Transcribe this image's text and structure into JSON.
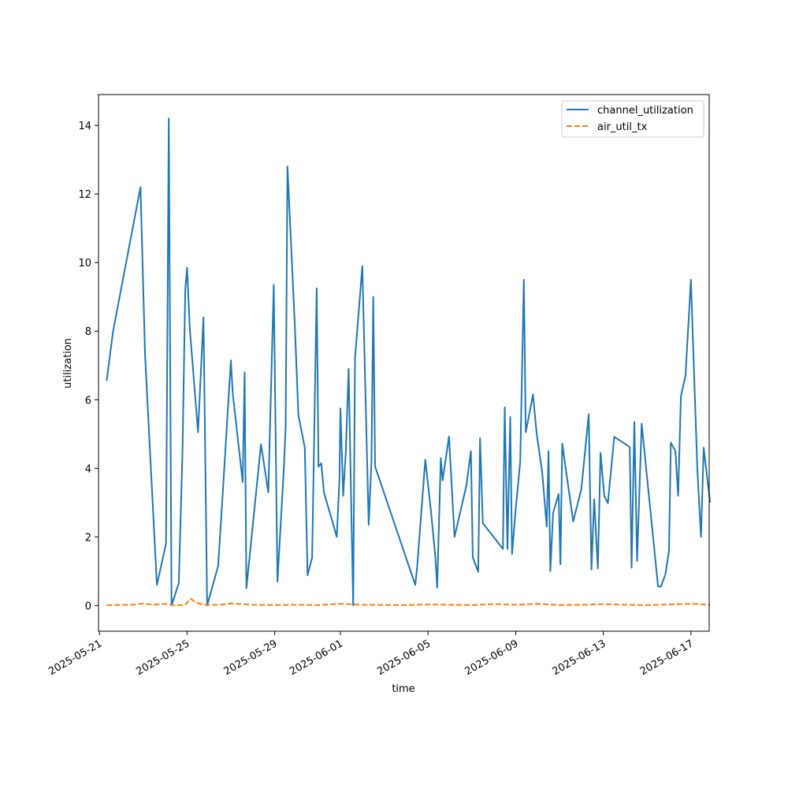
{
  "chart_data": {
    "type": "line",
    "xlabel": "time",
    "ylabel": "utilization",
    "xlim": [
      "2025-05-20T23:00",
      "2025-06-17T20:00"
    ],
    "ylim": [
      -0.75,
      14.9
    ],
    "x_ticks": [
      "2025-05-21",
      "2025-05-25",
      "2025-05-29",
      "2025-06-01",
      "2025-06-05",
      "2025-06-09",
      "2025-06-13",
      "2025-06-17"
    ],
    "y_ticks": [
      0,
      2,
      4,
      6,
      8,
      10,
      12,
      14
    ],
    "legend": {
      "position": "top-right"
    },
    "grid": false,
    "series": [
      {
        "name": "channel_utilization",
        "color": "#1f77b4",
        "dash": "solid",
        "points": [
          [
            "2025-05-21T08:00",
            6.55
          ],
          [
            "2025-05-21T15:00",
            8.0
          ],
          [
            "2025-05-22T21:00",
            12.2
          ],
          [
            "2025-05-23T02:00",
            7.3
          ],
          [
            "2025-05-23T15:00",
            0.6
          ],
          [
            "2025-05-24T01:00",
            1.8
          ],
          [
            "2025-05-24T04:00",
            14.2
          ],
          [
            "2025-05-24T07:00",
            0.0
          ],
          [
            "2025-05-24T15:00",
            0.65
          ],
          [
            "2025-05-24T19:00",
            4.5
          ],
          [
            "2025-05-24T22:00",
            9.2
          ],
          [
            "2025-05-25T00:00",
            9.85
          ],
          [
            "2025-05-25T03:00",
            8.1
          ],
          [
            "2025-05-25T12:00",
            5.05
          ],
          [
            "2025-05-25T18:00",
            8.4
          ],
          [
            "2025-05-25T22:00",
            0.0
          ],
          [
            "2025-05-26T10:00",
            1.15
          ],
          [
            "2025-05-26T14:00",
            2.8
          ],
          [
            "2025-05-27T00:00",
            7.15
          ],
          [
            "2025-05-27T02:00",
            6.2
          ],
          [
            "2025-05-27T13:00",
            3.6
          ],
          [
            "2025-05-27T15:00",
            6.8
          ],
          [
            "2025-05-27T17:00",
            0.5
          ],
          [
            "2025-05-28T09:00",
            4.7
          ],
          [
            "2025-05-28T17:00",
            3.3
          ],
          [
            "2025-05-28T23:00",
            9.35
          ],
          [
            "2025-05-29T03:00",
            0.7
          ],
          [
            "2025-05-29T10:00",
            4.0
          ],
          [
            "2025-05-29T12:00",
            5.2
          ],
          [
            "2025-05-29T14:00",
            12.8
          ],
          [
            "2025-05-29T22:00",
            8.2
          ],
          [
            "2025-05-30T02:00",
            5.55
          ],
          [
            "2025-05-30T09:00",
            4.6
          ],
          [
            "2025-05-30T12:00",
            0.88
          ],
          [
            "2025-05-30T17:00",
            1.4
          ],
          [
            "2025-05-30T22:00",
            9.25
          ],
          [
            "2025-05-31T00:00",
            4.05
          ],
          [
            "2025-05-31T03:00",
            4.15
          ],
          [
            "2025-05-31T06:00",
            3.3
          ],
          [
            "2025-05-31T20:00",
            2.0
          ],
          [
            "2025-05-31T23:00",
            3.7
          ],
          [
            "2025-06-01T00:00",
            5.75
          ],
          [
            "2025-06-01T03:00",
            3.2
          ],
          [
            "2025-06-01T06:00",
            4.5
          ],
          [
            "2025-06-01T09:00",
            6.9
          ],
          [
            "2025-06-01T14:00",
            0.0
          ],
          [
            "2025-06-01T16:00",
            7.2
          ],
          [
            "2025-06-02T00:00",
            9.9
          ],
          [
            "2025-06-02T07:00",
            2.35
          ],
          [
            "2025-06-02T10:00",
            4.2
          ],
          [
            "2025-06-02T12:00",
            9.0
          ],
          [
            "2025-06-02T14:00",
            4.05
          ],
          [
            "2025-06-04T10:00",
            0.6
          ],
          [
            "2025-06-04T12:00",
            1.1
          ],
          [
            "2025-06-04T21:00",
            4.25
          ],
          [
            "2025-06-05T03:00",
            2.8
          ],
          [
            "2025-06-05T08:00",
            1.4
          ],
          [
            "2025-06-05T10:00",
            0.52
          ],
          [
            "2025-06-05T14:00",
            4.3
          ],
          [
            "2025-06-05T16:00",
            3.65
          ],
          [
            "2025-06-05T23:00",
            4.93
          ],
          [
            "2025-06-06T05:00",
            2.0
          ],
          [
            "2025-06-06T18:00",
            3.5
          ],
          [
            "2025-06-06T23:00",
            4.5
          ],
          [
            "2025-06-07T01:00",
            1.4
          ],
          [
            "2025-06-07T07:00",
            0.98
          ],
          [
            "2025-06-07T09:00",
            4.88
          ],
          [
            "2025-06-07T12:00",
            2.4
          ],
          [
            "2025-06-08T10:00",
            1.65
          ],
          [
            "2025-06-08T12:00",
            5.78
          ],
          [
            "2025-06-08T15:00",
            1.65
          ],
          [
            "2025-06-08T18:00",
            5.5
          ],
          [
            "2025-06-08T20:00",
            1.5
          ],
          [
            "2025-06-09T00:00",
            2.8
          ],
          [
            "2025-06-09T05:00",
            4.2
          ],
          [
            "2025-06-09T09:00",
            9.5
          ],
          [
            "2025-06-09T11:00",
            5.05
          ],
          [
            "2025-06-09T19:00",
            6.15
          ],
          [
            "2025-06-09T23:00",
            5.0
          ],
          [
            "2025-06-10T05:00",
            3.9
          ],
          [
            "2025-06-10T10:00",
            2.3
          ],
          [
            "2025-06-10T12:00",
            4.5
          ],
          [
            "2025-06-10T14:00",
            1.0
          ],
          [
            "2025-06-10T17:00",
            2.7
          ],
          [
            "2025-06-10T23:00",
            3.25
          ],
          [
            "2025-06-11T01:00",
            1.2
          ],
          [
            "2025-06-11T03:00",
            4.72
          ],
          [
            "2025-06-11T15:00",
            2.45
          ],
          [
            "2025-06-12T00:00",
            3.4
          ],
          [
            "2025-06-12T08:00",
            5.58
          ],
          [
            "2025-06-12T11:00",
            1.05
          ],
          [
            "2025-06-12T14:00",
            3.1
          ],
          [
            "2025-06-12T18:00",
            1.08
          ],
          [
            "2025-06-12T21:00",
            4.45
          ],
          [
            "2025-06-13T01:00",
            3.2
          ],
          [
            "2025-06-13T05:00",
            2.98
          ],
          [
            "2025-06-13T12:00",
            4.92
          ],
          [
            "2025-06-14T05:00",
            4.62
          ],
          [
            "2025-06-14T07:00",
            1.1
          ],
          [
            "2025-06-14T10:00",
            5.35
          ],
          [
            "2025-06-14T13:00",
            1.3
          ],
          [
            "2025-06-14T18:00",
            5.3
          ],
          [
            "2025-06-15T12:00",
            0.55
          ],
          [
            "2025-06-15T15:00",
            0.55
          ],
          [
            "2025-06-15T20:00",
            0.9
          ],
          [
            "2025-06-16T00:00",
            1.6
          ],
          [
            "2025-06-16T02:00",
            4.75
          ],
          [
            "2025-06-16T07:00",
            4.5
          ],
          [
            "2025-06-16T10:00",
            3.2
          ],
          [
            "2025-06-16T13:00",
            6.1
          ],
          [
            "2025-06-16T18:00",
            6.7
          ],
          [
            "2025-06-17T00:00",
            9.5
          ],
          [
            "2025-06-17T07:00",
            4.0
          ],
          [
            "2025-06-17T11:00",
            2.0
          ],
          [
            "2025-06-17T14:00",
            4.6
          ],
          [
            "2025-06-17T21:00",
            3.0
          ]
        ]
      },
      {
        "name": "air_util_tx",
        "color": "#ff7f0e",
        "dash": "dashed",
        "points": [
          [
            "2025-05-21T08:00",
            0.01
          ],
          [
            "2025-05-22T12:00",
            0.02
          ],
          [
            "2025-05-23T00:00",
            0.06
          ],
          [
            "2025-05-23T12:00",
            0.02
          ],
          [
            "2025-05-24T00:00",
            0.05
          ],
          [
            "2025-05-24T12:00",
            0.0
          ],
          [
            "2025-05-24T22:00",
            0.02
          ],
          [
            "2025-05-25T04:00",
            0.2
          ],
          [
            "2025-05-25T10:00",
            0.08
          ],
          [
            "2025-05-25T18:00",
            0.02
          ],
          [
            "2025-05-26T12:00",
            0.02
          ],
          [
            "2025-05-27T00:00",
            0.06
          ],
          [
            "2025-05-28T00:00",
            0.02
          ],
          [
            "2025-05-29T00:00",
            0.01
          ],
          [
            "2025-05-30T00:00",
            0.02
          ],
          [
            "2025-05-31T00:00",
            0.01
          ],
          [
            "2025-06-01T00:00",
            0.05
          ],
          [
            "2025-06-02T00:00",
            0.02
          ],
          [
            "2025-06-04T00:00",
            0.01
          ],
          [
            "2025-06-05T00:00",
            0.03
          ],
          [
            "2025-06-06T00:00",
            0.02
          ],
          [
            "2025-06-07T00:00",
            0.01
          ],
          [
            "2025-06-08T00:00",
            0.04
          ],
          [
            "2025-06-09T00:00",
            0.02
          ],
          [
            "2025-06-10T00:00",
            0.05
          ],
          [
            "2025-06-11T00:00",
            0.01
          ],
          [
            "2025-06-12T00:00",
            0.02
          ],
          [
            "2025-06-13T00:00",
            0.04
          ],
          [
            "2025-06-14T00:00",
            0.02
          ],
          [
            "2025-06-15T00:00",
            0.01
          ],
          [
            "2025-06-16T00:00",
            0.03
          ],
          [
            "2025-06-17T00:00",
            0.05
          ],
          [
            "2025-06-17T21:00",
            0.02
          ]
        ]
      }
    ]
  }
}
